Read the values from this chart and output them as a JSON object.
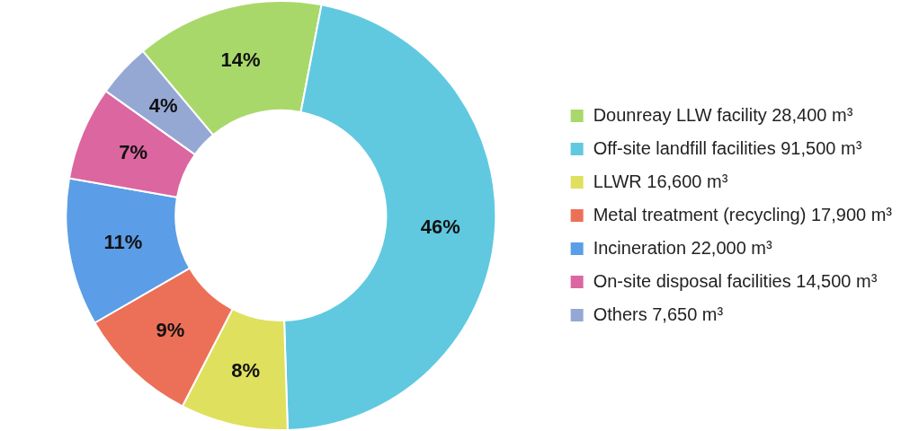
{
  "chart_data": {
    "type": "donut",
    "categories": [
      "Dounreay LLW facility 28,400 m³",
      "Off-site landfill facilities 91,500 m³",
      "LLWR 16,600 m³",
      "Metal treatment (recycling) 17,900 m³",
      "Incineration 22,000 m³",
      "On-site disposal facilities 14,500 m³",
      "Others 7,650 m³"
    ],
    "values": [
      14,
      46,
      8,
      9,
      11,
      7,
      4
    ],
    "colors": [
      "#a8d86a",
      "#60c9e0",
      "#dfe05e",
      "#ec7058",
      "#5b9de6",
      "#dc66a0",
      "#95a8d4"
    ],
    "value_labels": [
      "14%",
      "46%",
      "8%",
      "9%",
      "11%",
      "7%",
      "4%"
    ],
    "legend": "right"
  }
}
